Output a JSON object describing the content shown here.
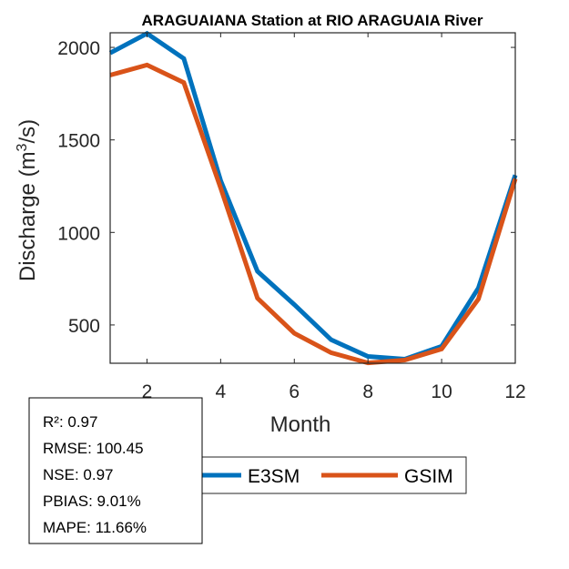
{
  "chart_data": {
    "type": "line",
    "title": "ARAGUAIANA  Station at  RIO ARAGUAIA  River",
    "xlabel": "Month",
    "ylabel": "Discharge (m",
    "ylabel_sup": "3",
    "ylabel_tail": "/s)",
    "xlim": [
      1,
      12
    ],
    "ylim": [
      293,
      2079
    ],
    "xticks": [
      2,
      4,
      6,
      8,
      10,
      12
    ],
    "xtick_labels": [
      "2",
      "4",
      "6",
      "8",
      "10",
      "12"
    ],
    "yticks": [
      500,
      1000,
      1500,
      2000
    ],
    "ytick_labels": [
      "500",
      "1000",
      "1500",
      "2000"
    ],
    "grid": false,
    "x": [
      1,
      2,
      3,
      4,
      5,
      6,
      7,
      8,
      9,
      10,
      11,
      12
    ],
    "series": [
      {
        "name": "E3SM",
        "color": "#0072BD",
        "values": [
          1970,
          2075,
          1940,
          1280,
          790,
          610,
          420,
          330,
          315,
          385,
          700,
          1310
        ]
      },
      {
        "name": "GSIM",
        "color": "#D95319",
        "values": [
          1850,
          1905,
          1810,
          1240,
          645,
          455,
          350,
          295,
          310,
          370,
          640,
          1290
        ]
      }
    ],
    "legend": {
      "placement": "bottom-center",
      "orientation": "horizontal",
      "entries": [
        "E3SM",
        "GSIM"
      ]
    },
    "annotation": {
      "placement": "bottom-left",
      "lines": [
        "R²: 0.97",
        "RMSE: 100.45",
        "NSE: 0.97",
        "PBIAS: 9.01%",
        "MAPE: 11.66%"
      ]
    }
  }
}
